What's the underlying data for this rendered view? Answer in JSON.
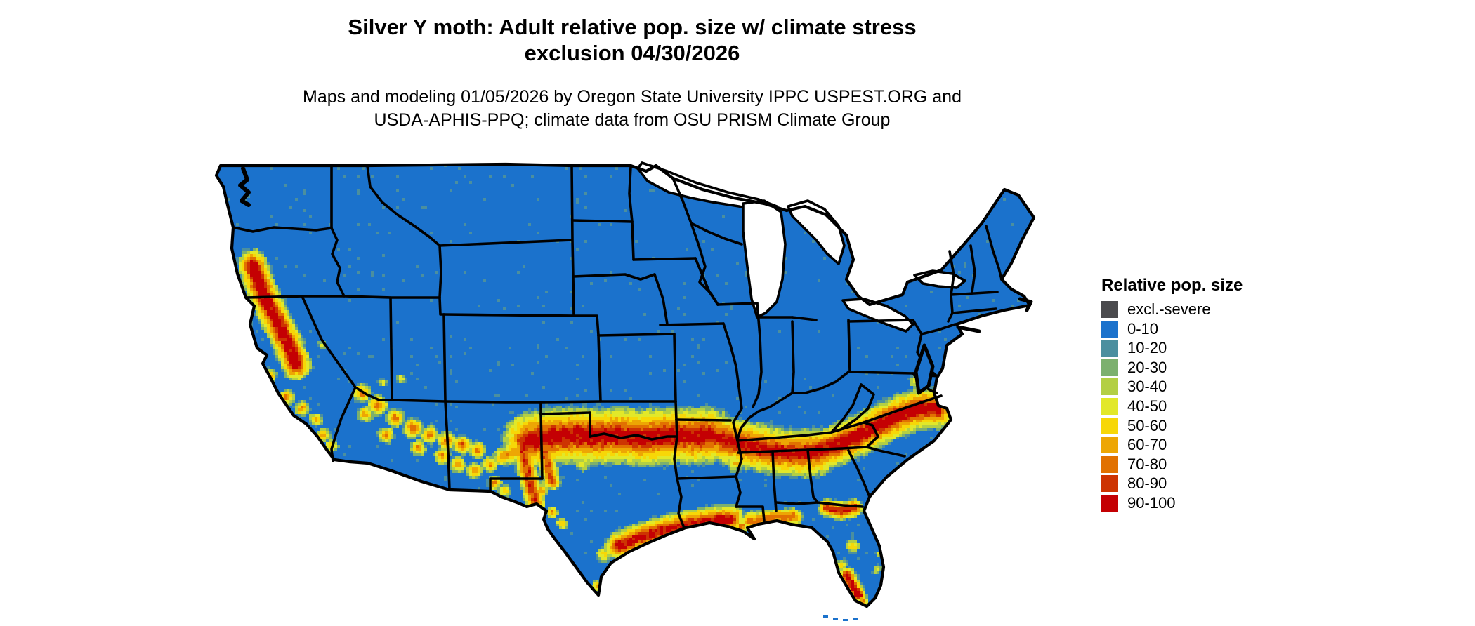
{
  "title": {
    "line1": "Silver Y moth: Adult relative pop. size w/ climate stress",
    "line2": "exclusion 04/30/2026"
  },
  "subtitle": {
    "line1": "Maps and modeling 01/05/2026 by Oregon State University IPPC USPEST.ORG and",
    "line2": "USDA-APHIS-PPQ; climate data from OSU PRISM Climate Group"
  },
  "legend": {
    "title": "Relative pop. size",
    "items": [
      {
        "label": "excl.-severe",
        "color": "#4a4a4d"
      },
      {
        "label": "0-10",
        "color": "#1b72cc"
      },
      {
        "label": "10-20",
        "color": "#4b8f9f"
      },
      {
        "label": "20-30",
        "color": "#7cb06e"
      },
      {
        "label": "30-40",
        "color": "#b3cf44"
      },
      {
        "label": "40-50",
        "color": "#e2e829"
      },
      {
        "label": "50-60",
        "color": "#f7d707"
      },
      {
        "label": "60-70",
        "color": "#eda604"
      },
      {
        "label": "70-80",
        "color": "#e17101"
      },
      {
        "label": "80-90",
        "color": "#cd3402"
      },
      {
        "label": "90-100",
        "color": "#c40003"
      }
    ]
  },
  "map": {
    "region": "Contiguous United States",
    "base_value_class": "0-10",
    "border_color": "#000000",
    "water_color": "#ffffff"
  },
  "chart_data": {
    "type": "heatmap",
    "variant": "raster-choropleth-map",
    "region": "Contiguous United States",
    "units": "relative population size (0-100), binned by 10",
    "bins": [
      "excl.-severe",
      "0-10",
      "10-20",
      "20-30",
      "30-40",
      "40-50",
      "50-60",
      "60-70",
      "70-80",
      "80-90",
      "90-100"
    ],
    "bin_colors": [
      "#4a4a4d",
      "#1b72cc",
      "#4b8f9f",
      "#7cb06e",
      "#b3cf44",
      "#e2e829",
      "#f7d707",
      "#eda604",
      "#e17101",
      "#cd3402",
      "#c40003"
    ],
    "background_class": "0-10",
    "high_value_areas": [
      "California Central Valley and coastal valleys",
      "southern Arizona and southern New Mexico uplands",
      "west Texas through Oklahoma / Red River into Arkansas",
      "northern Mississippi-Alabama-Georgia into the Carolina piedmont to the coast",
      "Texas Gulf Coast through Louisiana to the Florida panhandle",
      "north Florida band and southwest Florida coast"
    ],
    "legend_position": "right"
  }
}
